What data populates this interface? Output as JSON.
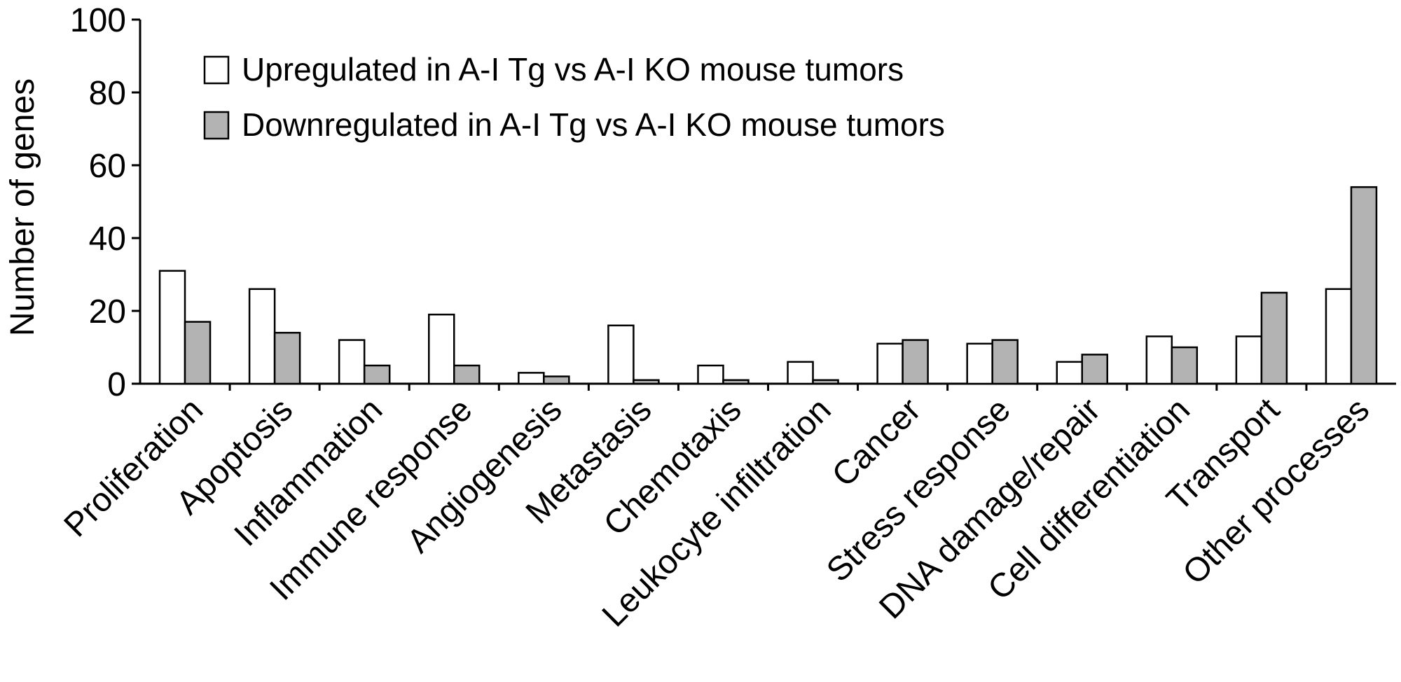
{
  "chart_data": {
    "type": "bar",
    "title": "",
    "xlabel": "",
    "ylabel": "Number of genes",
    "ylim": [
      0,
      100
    ],
    "yticks": [
      0,
      20,
      40,
      60,
      80,
      100
    ],
    "grid": false,
    "legend_position": "top-left",
    "categories": [
      "Proliferation",
      "Apoptosis",
      "Inflammation",
      "Immune response",
      "Angiogenesis",
      "Metastasis",
      "Chemotaxis",
      "Leukocyte infiltration",
      "Cancer",
      "Stress response",
      "DNA damage/repair",
      "Cell differentiation",
      "Transport",
      "Other processes"
    ],
    "series": [
      {
        "name": "Upregulated in A-I Tg vs A-I KO mouse tumors",
        "color": "#ffffff",
        "values": [
          31,
          26,
          12,
          19,
          3,
          16,
          5,
          6,
          11,
          11,
          6,
          13,
          13,
          26
        ]
      },
      {
        "name": "Downregulated in A-I Tg vs A-I KO mouse tumors",
        "color": "#b3b3b3",
        "values": [
          17,
          14,
          5,
          5,
          2,
          1,
          1,
          1,
          12,
          12,
          8,
          10,
          25,
          54
        ]
      }
    ]
  }
}
